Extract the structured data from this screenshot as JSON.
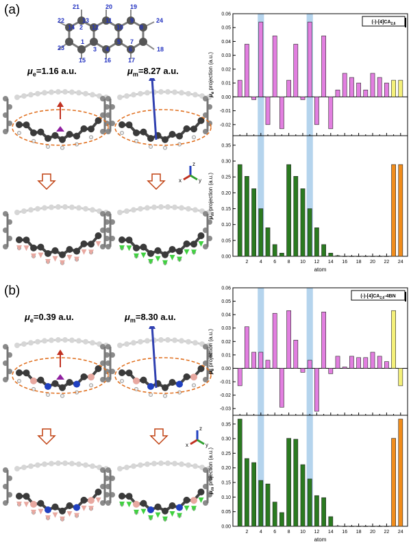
{
  "panel_a": {
    "label": "(a)",
    "mu_e_value": "1.16 a.u.",
    "mu_m_value": "8.27 a.u.",
    "numbers": [
      "21",
      "20",
      "19",
      "22",
      "14",
      "13",
      "12",
      "11",
      "10",
      "9",
      "8",
      "24",
      "1",
      "2",
      "4",
      "5",
      "7",
      "23",
      "3",
      "6",
      "18",
      "15",
      "16",
      "17"
    ]
  },
  "panel_b": {
    "label": "(b)",
    "mu_e_value": "0.39 a.u.",
    "mu_m_value": "8.30 a.u."
  },
  "mu_e_symbol": "μ",
  "mu_e_sub": "e",
  "mu_m_symbol": "μ",
  "mu_m_sub": "m",
  "equals": "=",
  "colors": {
    "ring_carbon": "#555555",
    "atom_number": "#2030c0",
    "dashed_ellipse": "#e07020",
    "arrow_outline": "#c04010",
    "pink": "#e27fe0",
    "green": "#2a7a20",
    "orange": "#f08c1c",
    "yellow": "#f4f07a",
    "highlight": "#a8cdea"
  },
  "chart_data": [
    {
      "type": "bar",
      "title": "(-)-[4]CA2,6",
      "ylabel": "μe projection (a.u.)",
      "xlabel": "",
      "x": [
        1,
        2,
        3,
        4,
        5,
        6,
        7,
        8,
        9,
        10,
        11,
        12,
        13,
        14,
        15,
        16,
        17,
        18,
        19,
        20,
        21,
        22,
        23,
        24
      ],
      "values": [
        0.012,
        0.038,
        -0.002,
        0.054,
        -0.02,
        0.044,
        -0.023,
        0.012,
        0.038,
        -0.002,
        0.054,
        -0.02,
        0.044,
        -0.023,
        0.005,
        0.017,
        0.014,
        0.01,
        0.005,
        0.017,
        0.014,
        0.01,
        0.012,
        0.012
      ],
      "ylim": [
        -0.028,
        0.06
      ],
      "yticks": [
        -0.02,
        -0.01,
        0.0,
        0.01,
        0.02,
        0.03,
        0.04,
        0.05,
        0.06
      ],
      "ytick_labels": [
        "-0.02",
        "-0.01",
        "0.00",
        "0.01",
        "0.02",
        "0.03",
        "0.04",
        "0.05",
        "0.06"
      ],
      "highlight_x": [
        4,
        11
      ],
      "legend": "top-right"
    },
    {
      "type": "bar",
      "ylabel": "μm projection (a.u.)",
      "xlabel": "atom",
      "x": [
        1,
        2,
        3,
        4,
        5,
        6,
        7,
        8,
        9,
        10,
        11,
        12,
        13,
        14,
        15,
        16,
        17,
        18,
        19,
        20,
        21,
        22,
        23,
        24
      ],
      "values": [
        0.289,
        0.252,
        0.213,
        0.15,
        0.09,
        0.037,
        0.01,
        0.289,
        0.252,
        0.213,
        0.15,
        0.09,
        0.037,
        0.01,
        0.002,
        0.0,
        0.0,
        0.0,
        0.0,
        0.0,
        0.0,
        0.0,
        0.289,
        0.289
      ],
      "ylim": [
        0,
        0.38
      ],
      "yticks": [
        0.0,
        0.05,
        0.1,
        0.15,
        0.2,
        0.25,
        0.3,
        0.35
      ],
      "ytick_labels": [
        "0.00",
        "0.05",
        "0.10",
        "0.15",
        "0.20",
        "0.25",
        "0.30",
        "0.35"
      ],
      "xticks": [
        2,
        4,
        6,
        8,
        10,
        12,
        14,
        16,
        18,
        20,
        22,
        24
      ],
      "xtick_labels": [
        "2",
        "4",
        "6",
        "8",
        "10",
        "12",
        "14",
        "16",
        "18",
        "20",
        "22",
        "24"
      ],
      "highlight_x": [
        4,
        11
      ]
    },
    {
      "type": "bar",
      "title": "(-)-[4]CA2,6-4BN",
      "ylabel": "μe projection (a.u.)",
      "xlabel": "",
      "x": [
        1,
        2,
        3,
        4,
        5,
        6,
        7,
        8,
        9,
        10,
        11,
        12,
        13,
        14,
        15,
        16,
        17,
        18,
        19,
        20,
        21,
        22,
        23,
        24
      ],
      "values": [
        -0.013,
        0.031,
        0.012,
        0.012,
        0.006,
        0.041,
        -0.029,
        0.043,
        0.021,
        -0.003,
        0.006,
        -0.032,
        0.042,
        -0.004,
        0.009,
        0.001,
        0.009,
        0.008,
        0.008,
        0.012,
        0.009,
        0.005,
        0.043,
        -0.013
      ],
      "ylim": [
        -0.035,
        0.06
      ],
      "yticks": [
        -0.03,
        -0.02,
        -0.01,
        0.0,
        0.01,
        0.02,
        0.03,
        0.04,
        0.05,
        0.06
      ],
      "ytick_labels": [
        "-0.03",
        "-0.02",
        "-0.01",
        "0.00",
        "0.01",
        "0.02",
        "0.03",
        "0.04",
        "0.05",
        "0.06"
      ],
      "highlight_x": [
        4,
        11
      ],
      "legend": "top-right"
    },
    {
      "type": "bar",
      "ylabel": "μm projection (a.u.)",
      "xlabel": "atom",
      "x": [
        1,
        2,
        3,
        4,
        5,
        6,
        7,
        8,
        9,
        10,
        11,
        12,
        13,
        14,
        15,
        16,
        17,
        18,
        19,
        20,
        21,
        22,
        23,
        24
      ],
      "values": [
        0.367,
        0.232,
        0.218,
        0.157,
        0.145,
        0.083,
        0.047,
        0.301,
        0.298,
        0.211,
        0.162,
        0.105,
        0.098,
        0.033,
        0.001,
        0.0,
        0.0,
        0.0,
        0.0,
        0.0,
        0.0,
        0.0,
        0.301,
        0.367
      ],
      "ylim": [
        0,
        0.38
      ],
      "yticks": [
        0.0,
        0.05,
        0.1,
        0.15,
        0.2,
        0.25,
        0.3,
        0.35
      ],
      "ytick_labels": [
        "0.00",
        "0.05",
        "0.10",
        "0.15",
        "0.20",
        "0.25",
        "0.30",
        "0.35"
      ],
      "xticks": [
        2,
        4,
        6,
        8,
        10,
        12,
        14,
        16,
        18,
        20,
        22,
        24
      ],
      "xtick_labels": [
        "2",
        "4",
        "6",
        "8",
        "10",
        "12",
        "14",
        "16",
        "18",
        "20",
        "22",
        "24"
      ],
      "highlight_x": [
        4,
        11
      ]
    }
  ],
  "chart_title_base_a": "(-)-[4]CA",
  "chart_title_sub_a": "2,6",
  "chart_title_base_b": "(-)-[4]CA",
  "chart_title_sub_b": "2,6",
  "chart_title_suffix_b": "-4BN",
  "ylabel_pe_rest": " projection (a.u.)",
  "ylabel_pm_rest": " projection (a.u.)",
  "xlabel": "atom",
  "axis_icon_labels": [
    "z",
    "x",
    "y"
  ]
}
